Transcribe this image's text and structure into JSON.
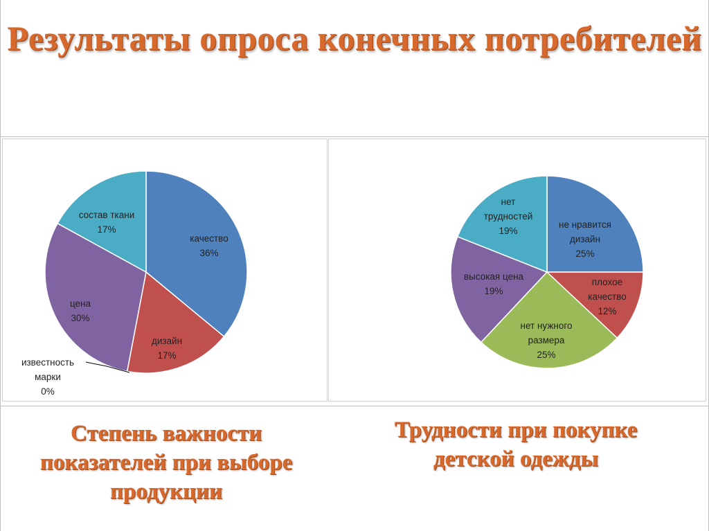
{
  "header": {
    "title": "Результаты опроса конечных потребителей"
  },
  "captions": {
    "left": "Степень важности показателей при выборе продукции",
    "right": "Трудности при покупке детской одежды"
  },
  "chart_data": [
    {
      "type": "pie",
      "title": "Степень важности показателей при выборе продукции",
      "slices": [
        {
          "label": "качество",
          "value": 36,
          "pct": "36%",
          "color": "#4f81bd"
        },
        {
          "label": "дизайн",
          "value": 17,
          "pct": "17%",
          "color": "#c0504d"
        },
        {
          "label": "известность марки",
          "value": 0,
          "pct": "0%",
          "color": "#9bbb59"
        },
        {
          "label": "цена",
          "value": 30,
          "pct": "30%",
          "color": "#8064a2"
        },
        {
          "label": "состав ткани",
          "value": 17,
          "pct": "17%",
          "color": "#4bacc6"
        }
      ]
    },
    {
      "type": "pie",
      "title": "Трудности при покупке детской одежды",
      "slices": [
        {
          "label": "не нравится дизайн",
          "value": 25,
          "pct": "25%",
          "color": "#4f81bd"
        },
        {
          "label": "плохое качество",
          "value": 12,
          "pct": "12%",
          "color": "#c0504d"
        },
        {
          "label": "нет нужного размера",
          "value": 25,
          "pct": "25%",
          "color": "#9bbb59"
        },
        {
          "label": "высокая цена",
          "value": 19,
          "pct": "19%",
          "color": "#8064a2"
        },
        {
          "label": "нет трудностей",
          "value": 19,
          "pct": "19%",
          "color": "#4bacc6"
        }
      ]
    }
  ]
}
